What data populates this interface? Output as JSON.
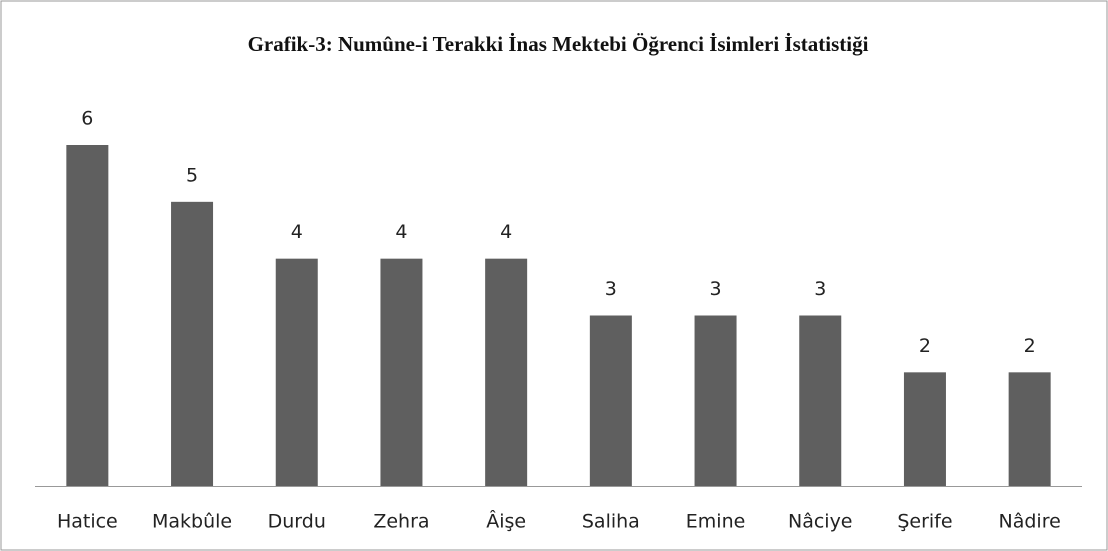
{
  "chart_data": {
    "type": "bar",
    "title": "Grafik-3: Numûne-i Terakki İnas Mektebi Öğrenci İsimleri İstatistiği",
    "categories": [
      "Hatice",
      "Makbûle",
      "Durdu",
      "Zehra",
      "Âişe",
      "Saliha",
      "Emine",
      "Nâciye",
      "Şerife",
      "Nâdire"
    ],
    "values": [
      6,
      5,
      4,
      4,
      4,
      3,
      3,
      3,
      2,
      2
    ],
    "color": "#5f5f5f"
  }
}
